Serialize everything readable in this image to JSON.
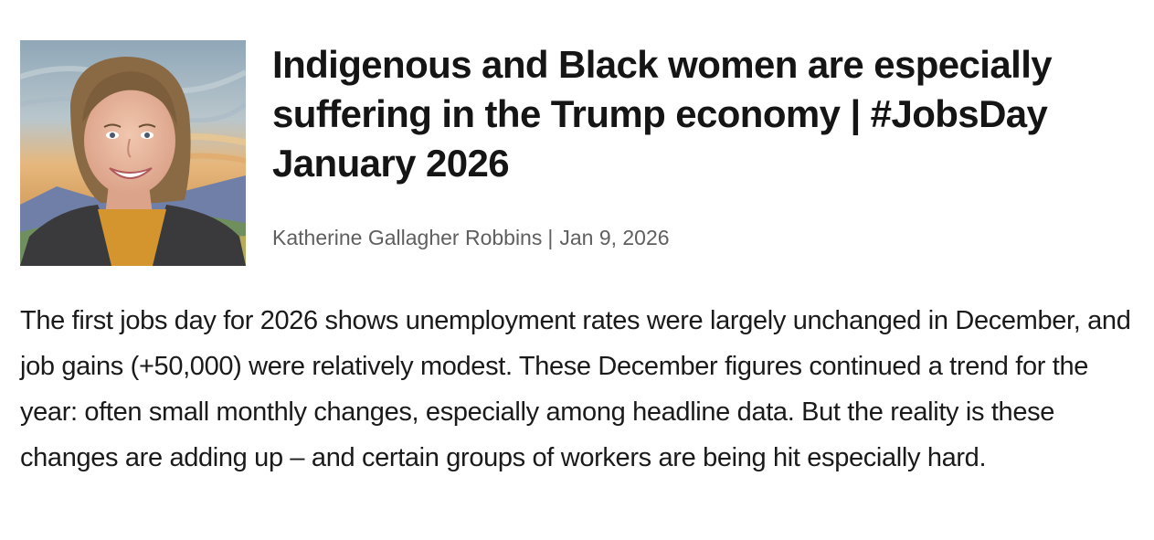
{
  "article": {
    "title": "Indigenous and Black women are especially suffering in the Trump economy | #JobsDay January 2026",
    "author": "Katherine Gallagher Robbins",
    "separator": "|",
    "date": "Jan 9, 2026",
    "lede": "The first jobs day for 2026 shows unemployment rates were largely unchanged in December, and job gains (+50,000) were relatively modest. These December figures continued a trend for the year: often small monthly changes, especially among headline data. But the reality is these changes are adding up – and certain groups of workers are being hit especially hard."
  },
  "photo": {
    "icon": "author-portrait",
    "colors": {
      "sky": "#9fb3c2",
      "sunset": "#e8b273",
      "mountains": "#6f7fa8",
      "hair": "#8a6a45",
      "skin": "#e8b8a0",
      "jacket": "#3a3a3c",
      "shirt": "#d4952e"
    }
  }
}
